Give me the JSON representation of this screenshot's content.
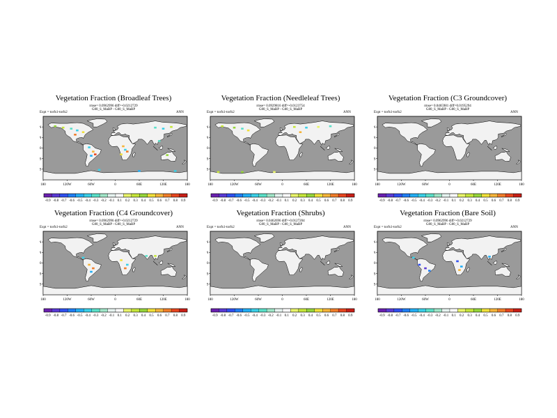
{
  "chart_data": [
    {
      "type": "heatmap",
      "title": "Vegetation Fraction (Broadleaf Trees)",
      "rmse_text": "rmse= 0.0962996 diff=-0.0212729",
      "cases_text": "G80_S_MaBP - G80_S_MaBP",
      "expt_text": "Expt = torfs1-torfs2",
      "season": "ANN",
      "diff_points": [
        {
          "lon": -150,
          "lat": 62,
          "v": 0.4
        },
        {
          "lon": -130,
          "lat": 58,
          "v": 0.3
        },
        {
          "lon": -110,
          "lat": 55,
          "v": -0.3
        },
        {
          "lon": -95,
          "lat": 50,
          "v": -0.4
        },
        {
          "lon": -80,
          "lat": 45,
          "v": 0.5
        },
        {
          "lon": -100,
          "lat": 38,
          "v": 0.7
        },
        {
          "lon": -65,
          "lat": 2,
          "v": -0.4
        },
        {
          "lon": -55,
          "lat": -10,
          "v": 0.6
        },
        {
          "lon": -50,
          "lat": -18,
          "v": 0.8
        },
        {
          "lon": -60,
          "lat": -22,
          "v": -0.5
        },
        {
          "lon": 20,
          "lat": 5,
          "v": 0.6
        },
        {
          "lon": 25,
          "lat": -5,
          "v": -0.4
        },
        {
          "lon": 30,
          "lat": -10,
          "v": 0.7
        },
        {
          "lon": 15,
          "lat": -18,
          "v": 0.5
        },
        {
          "lon": 100,
          "lat": 58,
          "v": -0.3
        },
        {
          "lon": 120,
          "lat": 55,
          "v": -0.4
        },
        {
          "lon": 140,
          "lat": 60,
          "v": 0.3
        },
        {
          "lon": 110,
          "lat": 20,
          "v": -0.3
        },
        {
          "lon": 130,
          "lat": -20,
          "v": 0.4
        },
        {
          "lon": -40,
          "lat": -62,
          "v": -0.4
        },
        {
          "lon": 60,
          "lat": -65,
          "v": -0.5
        },
        {
          "lon": 150,
          "lat": -65,
          "v": -0.4
        }
      ]
    },
    {
      "type": "heatmap",
      "title": "Vegetation Fraction (Needleleaf Trees)",
      "rmse_text": "rmse= 0.0929816 diff=-0.0123754",
      "cases_text": "G80_S_MaBP - G80_S_MaBP",
      "expt_text": "Expt = torfs1-torfs2",
      "season": "ANN",
      "diff_points": [
        {
          "lon": -150,
          "lat": 62,
          "v": 0.3
        },
        {
          "lon": -120,
          "lat": 58,
          "v": 0.4
        },
        {
          "lon": -100,
          "lat": 55,
          "v": -0.3
        },
        {
          "lon": -85,
          "lat": 50,
          "v": 0.5
        },
        {
          "lon": 30,
          "lat": 60,
          "v": 0.3
        },
        {
          "lon": 60,
          "lat": 58,
          "v": -0.4
        },
        {
          "lon": 90,
          "lat": 60,
          "v": 0.2
        },
        {
          "lon": 120,
          "lat": 62,
          "v": -0.3
        },
        {
          "lon": 45,
          "lat": 45,
          "v": 0.6
        },
        {
          "lon": -160,
          "lat": -68,
          "v": 0.3
        },
        {
          "lon": -100,
          "lat": -68,
          "v": 0.4
        },
        {
          "lon": -20,
          "lat": -68,
          "v": 0.2
        }
      ]
    },
    {
      "type": "heatmap",
      "title": "Vegetation Fraction (C3 Groundcover)",
      "rmse_text": "rmse= 0.0465981 diff=0.0195294",
      "cases_text": "G80_S_MaBP - G80_S_MaBP",
      "expt_text": "Expt = torfs1-torfs2",
      "season": "ANN",
      "diff_points": []
    },
    {
      "type": "heatmap",
      "title": "Vegetation Fraction (C4 Groundcover)",
      "rmse_text": "rmse= 0.0962996 diff=-0.0212729",
      "cases_text": "G80_S_MaBP - G80_S_MaBP",
      "expt_text": "Expt = torfs1-torfs2",
      "season": "ANN",
      "diff_points": [
        {
          "lon": -80,
          "lat": 15,
          "v": -0.4
        },
        {
          "lon": -65,
          "lat": -5,
          "v": 0.6
        },
        {
          "lon": -55,
          "lat": -15,
          "v": 0.7
        },
        {
          "lon": -60,
          "lat": -25,
          "v": -0.5
        },
        {
          "lon": 15,
          "lat": 8,
          "v": 0.5
        },
        {
          "lon": 30,
          "lat": -5,
          "v": -0.4
        },
        {
          "lon": 25,
          "lat": -15,
          "v": 0.7
        },
        {
          "lon": 100,
          "lat": 20,
          "v": 0.3
        },
        {
          "lon": 78,
          "lat": 20,
          "v": -0.3
        }
      ]
    },
    {
      "type": "heatmap",
      "title": "Vegetation Fraction (Shrubs)",
      "rmse_text": "rmse= 0.0462696 diff=-0.0127204",
      "cases_text": "G80_S_MaBP - G80_S_MaBP",
      "expt_text": "Expt = torfs1-torfs2",
      "season": "ANN",
      "diff_points": []
    },
    {
      "type": "heatmap",
      "title": "Vegetation Fraction (Bare Soil)",
      "rmse_text": "rmse= 0.0962996 diff=-0.0212729",
      "cases_text": "G80_S_MaBP - G80_S_MaBP",
      "expt_text": "Expt = torfs1-torfs2",
      "season": "ANN",
      "diff_points": [
        {
          "lon": -75,
          "lat": -5,
          "v": -0.7
        },
        {
          "lon": -60,
          "lat": -15,
          "v": -0.8
        },
        {
          "lon": -50,
          "lat": -22,
          "v": -0.6
        },
        {
          "lon": 20,
          "lat": 5,
          "v": -0.7
        },
        {
          "lon": 30,
          "lat": -10,
          "v": -0.5
        },
        {
          "lon": 25,
          "lat": -20,
          "v": 0.6
        },
        {
          "lon": -90,
          "lat": 15,
          "v": -0.4
        },
        {
          "lon": 100,
          "lat": 18,
          "v": -0.5
        }
      ]
    }
  ],
  "axes": {
    "lon_ticks": [
      "180",
      "120W",
      "60W",
      "0",
      "60E",
      "120E",
      "180"
    ],
    "lat_ticks": [
      "60N",
      "30N",
      "0",
      "30S",
      "60S"
    ],
    "lat_values": [
      60,
      30,
      0,
      -30,
      -60
    ]
  },
  "colorbar": {
    "labels": [
      "-0.9",
      "-0.8",
      "-0.7",
      "-0.6",
      "-0.5",
      "-0.4",
      "-0.3",
      "-0.2",
      "-0.1",
      "0.1",
      "0.2",
      "0.3",
      "0.4",
      "0.5",
      "0.6",
      "0.7",
      "0.8",
      "0.9"
    ],
    "colors": [
      "#6a1fb0",
      "#5a3ad6",
      "#2f4ff0",
      "#1f7ef5",
      "#22aef5",
      "#3ad0e8",
      "#5ae0c8",
      "#a0e6c8",
      "#e6f3f0",
      "#ffffff",
      "#e9f46a",
      "#c6e63a",
      "#96d63a",
      "#f0e03a",
      "#f5b43a",
      "#f07d2a",
      "#e8461f",
      "#c81e16"
    ],
    "ocean_color": "#9a9a9a",
    "land_color": "#f2f2f2"
  }
}
